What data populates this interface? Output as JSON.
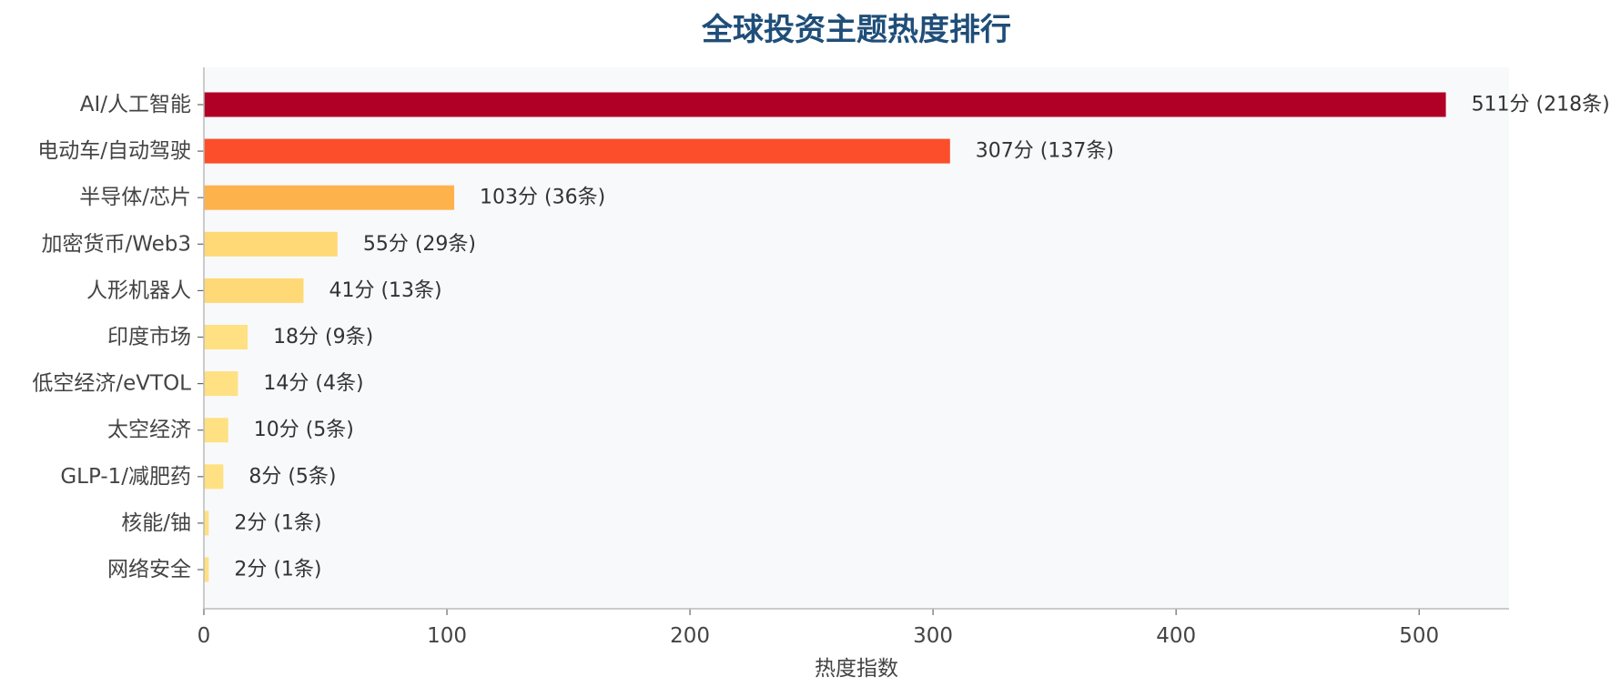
{
  "chart_data": {
    "type": "bar",
    "orientation": "horizontal",
    "title": "全球投资主题热度排行",
    "xlabel": "热度指数",
    "ylabel": "",
    "xlim": [
      0,
      537
    ],
    "x_ticks": [
      0,
      100,
      200,
      300,
      400,
      500
    ],
    "grid": false,
    "legend": "none",
    "plot_background": "#f8f9fb",
    "categories": [
      "AI/人工智能",
      "电动车/自动驾驶",
      "半导体/芯片",
      "加密货币/Web3",
      "人形机器人",
      "印度市场",
      "低空经济/eVTOL",
      "太空经济",
      "GLP-1/减肥药",
      "核能/铀",
      "网络安全"
    ],
    "values": [
      511,
      307,
      103,
      55,
      41,
      18,
      14,
      10,
      8,
      2,
      2
    ],
    "counts": [
      218,
      137,
      36,
      29,
      13,
      9,
      4,
      5,
      5,
      1,
      1
    ],
    "data_labels": [
      "511分 (218条)",
      "307分 (137条)",
      "103分 (36条)",
      "55分 (29条)",
      "41分 (13条)",
      "18分 (9条)",
      "14分 (4条)",
      "10分 (5条)",
      "8分 (5条)",
      "2分 (1条)",
      "2分 (1条)"
    ],
    "bar_colors": [
      "#b10026",
      "#fc4e2a",
      "#feb24c",
      "#fed976",
      "#fed976",
      "#ffe082",
      "#ffe082",
      "#ffe082",
      "#ffe082",
      "#ffe082",
      "#ffe082"
    ]
  }
}
